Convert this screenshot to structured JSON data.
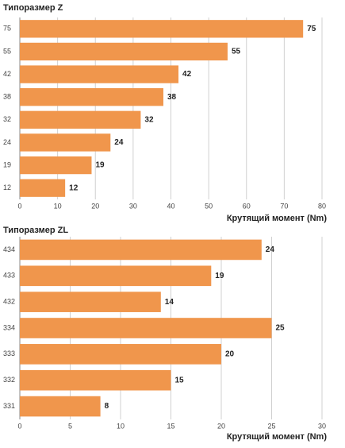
{
  "chart_data": [
    {
      "type": "barh",
      "title": "Типоразмер Z",
      "x_label": "Крутящий момент (Nm)",
      "categories": [
        "75",
        "55",
        "42",
        "38",
        "32",
        "24",
        "19",
        "12"
      ],
      "values": [
        75,
        55,
        42,
        38,
        32,
        24,
        19,
        12
      ],
      "color": "#f0964c",
      "xlim": [
        0,
        80
      ],
      "xticks": [
        0,
        10,
        20,
        30,
        40,
        50,
        60,
        70,
        80
      ],
      "grid": true
    },
    {
      "type": "barh",
      "title": "Типоразмер ZL",
      "x_label": "Крутящий момент (Nm)",
      "categories": [
        "434",
        "433",
        "432",
        "334",
        "333",
        "332",
        "331"
      ],
      "values": [
        24,
        19,
        14,
        25,
        20,
        15,
        8
      ],
      "color": "#f0964c",
      "xlim": [
        0,
        30
      ],
      "xticks": [
        0,
        5,
        10,
        15,
        20,
        25,
        30
      ],
      "grid": true
    }
  ]
}
